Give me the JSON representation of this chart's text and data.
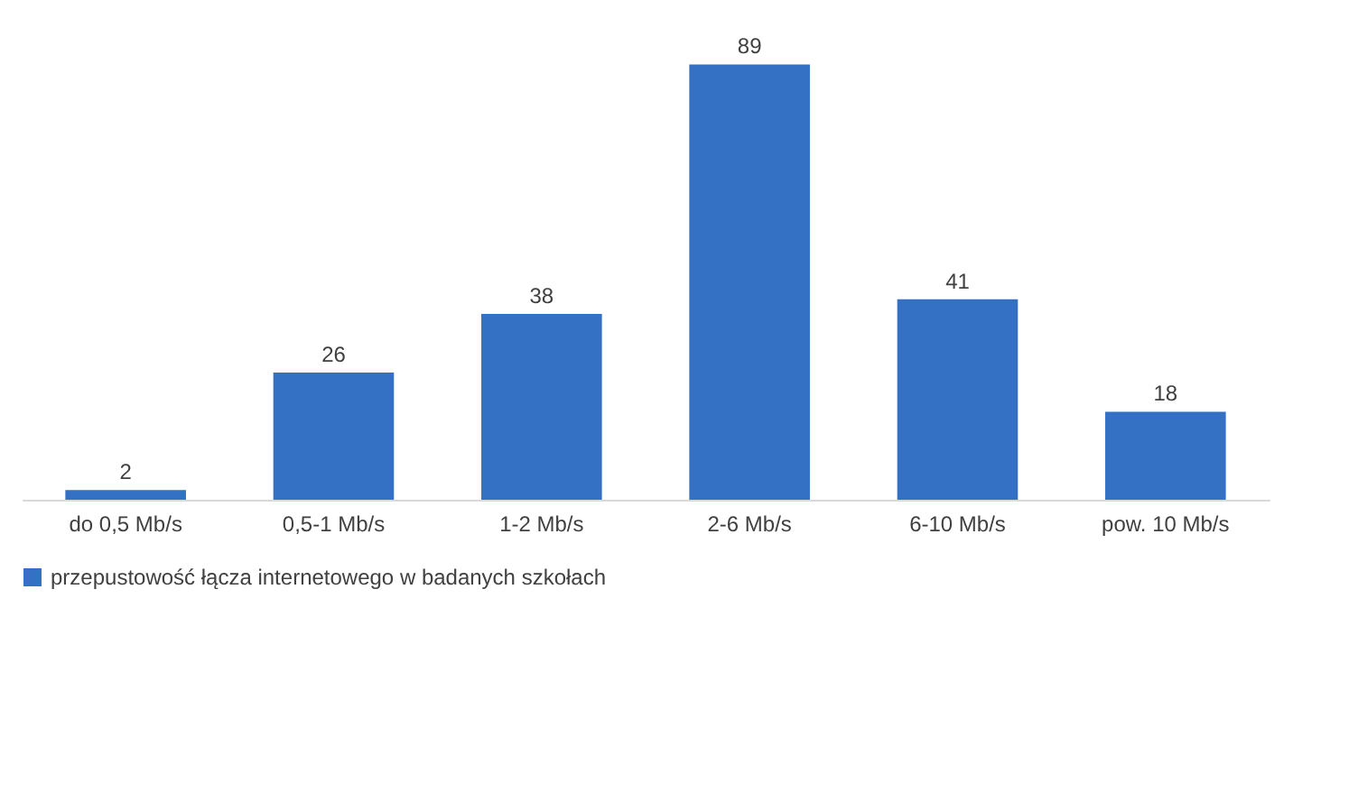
{
  "chart_data": {
    "type": "bar",
    "categories": [
      "do 0,5 Mb/s",
      "0,5-1 Mb/s",
      "1-2 Mb/s",
      "2-6 Mb/s",
      "6-10 Mb/s",
      "pow. 10 Mb/s"
    ],
    "series": [
      {
        "name": "przepustowość łącza internetowego w badanych szkołach",
        "color": "#3470c4",
        "values": [
          2,
          26,
          38,
          89,
          41,
          18
        ]
      }
    ],
    "data_labels": true,
    "legend": "bottom",
    "grid": false
  }
}
